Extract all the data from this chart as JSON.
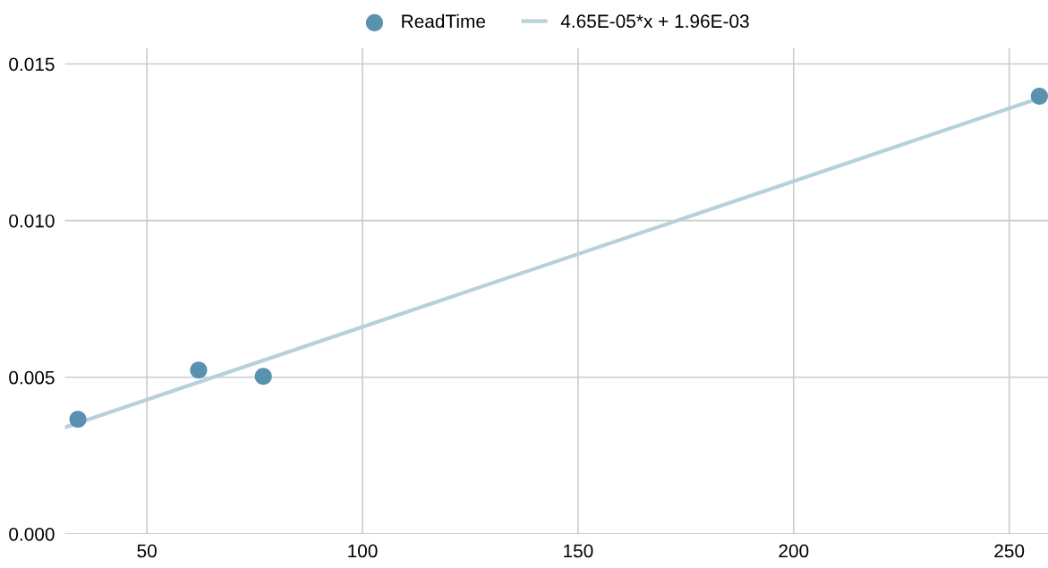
{
  "chart_data": {
    "type": "scatter",
    "legend": "top",
    "grid": true,
    "xlim": [
      31,
      259
    ],
    "xticks": [
      50,
      100,
      150,
      200,
      250
    ],
    "ylim": [
      0,
      0.0155
    ],
    "yticks": [
      {
        "value": 0,
        "label": "0.000"
      },
      {
        "value": 0.005,
        "label": "0.005"
      },
      {
        "value": 0.01,
        "label": "0.010"
      },
      {
        "value": 0.015,
        "label": "0.015"
      }
    ],
    "series": [
      {
        "name": "ReadTime",
        "marker": "circle",
        "color": "#5a91ae",
        "x": [
          34,
          62,
          77,
          257
        ],
        "values": [
          0.00366,
          0.00523,
          0.00503,
          0.01397
        ]
      },
      {
        "name": "4.65E-05*x + 1.96E-03",
        "type": "line",
        "color": "#b8d0dc",
        "x": [
          31,
          259
        ],
        "values": [
          0.0034,
          0.014
        ]
      }
    ]
  }
}
